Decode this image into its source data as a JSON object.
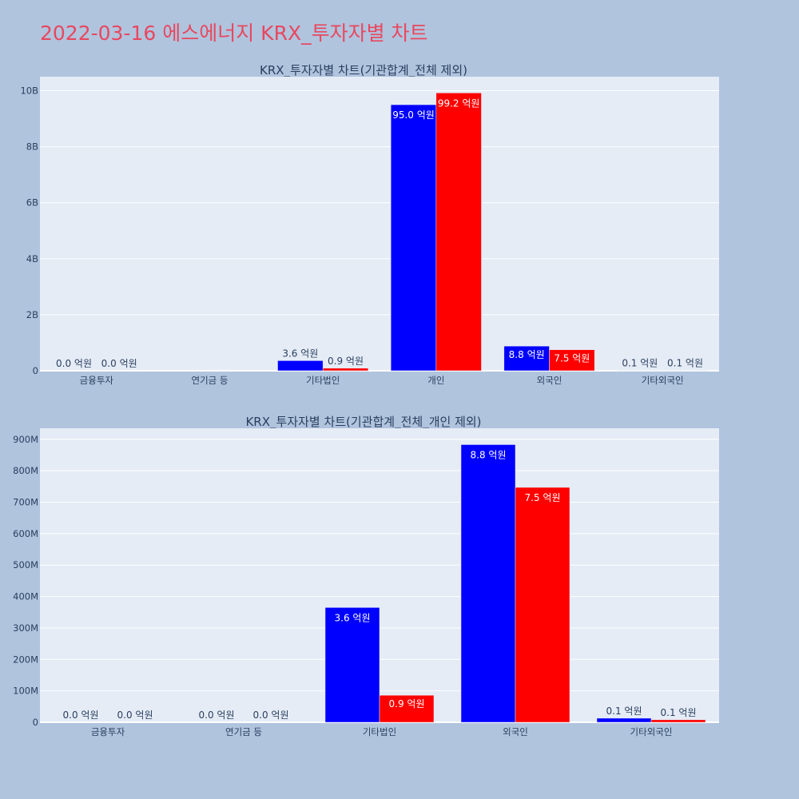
{
  "title": "2022-03-16 에스에너지 KRX_투자자별 차트",
  "colors": {
    "background": "#b0c4de",
    "plot_bg": "#e5ecf6",
    "title": "#e8485f",
    "series_a": "#0000ff",
    "series_b": "#ff0000"
  },
  "chart_data": [
    {
      "type": "bar",
      "title": "KRX_투자자별 차트(기관합계_전체 제외)",
      "categories": [
        "금융투자",
        "연기금 등",
        "기타법인",
        "개인",
        "외국인",
        "기타외국인"
      ],
      "series": [
        {
          "color": "#0000ff",
          "values": [
            0,
            0,
            360000000,
            9500000000,
            880000000,
            10000000
          ],
          "labels": [
            "0.0 억원",
            "",
            "3.6 억원",
            "95.0 억원",
            "8.8 억원",
            "0.1 억원"
          ]
        },
        {
          "color": "#ff0000",
          "values": [
            0,
            0,
            90000000,
            9920000000,
            750000000,
            10000000
          ],
          "labels": [
            "0.0 억원",
            "",
            "0.9 억원",
            "99.2 억원",
            "7.5 억원",
            "0.1 억원"
          ]
        }
      ],
      "ylim": [
        0,
        10500000000
      ],
      "yticks": [
        0,
        2000000000,
        4000000000,
        6000000000,
        8000000000,
        10000000000
      ],
      "ytick_labels": [
        "0",
        "2B",
        "4B",
        "6B",
        "8B",
        "10B"
      ],
      "grid": true
    },
    {
      "type": "bar",
      "title": "KRX_투자자별 차트(기관합계_전체_개인 제외)",
      "categories": [
        "금융투자",
        "연기금 등",
        "기타법인",
        "외국인",
        "기타외국인"
      ],
      "series": [
        {
          "color": "#0000ff",
          "values": [
            0,
            0,
            365000000,
            883000000,
            13000000
          ],
          "labels": [
            "0.0 억원",
            "0.0 억원",
            "3.6 억원",
            "8.8 억원",
            "0.1 억원"
          ]
        },
        {
          "color": "#ff0000",
          "values": [
            0,
            0,
            86000000,
            747000000,
            8000000
          ],
          "labels": [
            "0.0 억원",
            "0.0 억원",
            "0.9 억원",
            "7.5 억원",
            "0.1 억원"
          ]
        }
      ],
      "ylim": [
        0,
        935000000
      ],
      "yticks": [
        0,
        100000000,
        200000000,
        300000000,
        400000000,
        500000000,
        600000000,
        700000000,
        800000000,
        900000000
      ],
      "ytick_labels": [
        "0",
        "100M",
        "200M",
        "300M",
        "400M",
        "500M",
        "600M",
        "700M",
        "800M",
        "900M"
      ],
      "grid": true
    }
  ]
}
